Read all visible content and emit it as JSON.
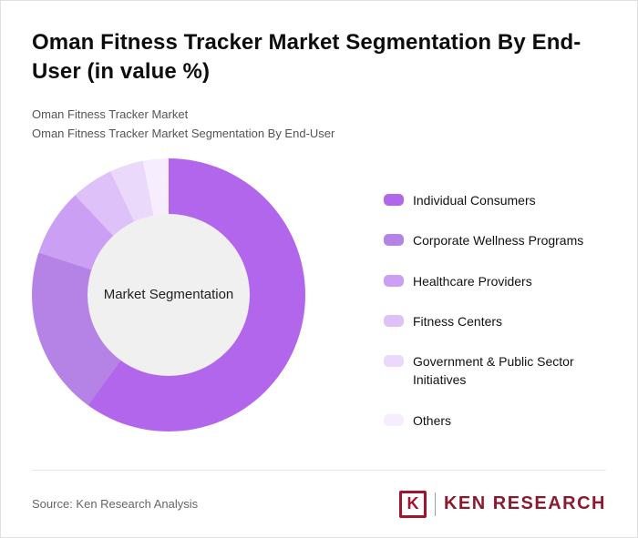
{
  "title": "Oman Fitness Tracker Market Segmentation By End-User (in value %)",
  "subtitle_line1": "Oman Fitness Tracker Market",
  "subtitle_line2": "Oman Fitness Tracker Market Segmentation By End-User",
  "footer": {
    "source": "Source: Ken Research Analysis",
    "brand_letter": "K",
    "brand_name": "KEN RESEARCH",
    "brand_color": "#a3132f"
  },
  "chart_data": {
    "type": "pie",
    "subtype": "donut",
    "title": "Oman Fitness Tracker Market Segmentation By End-User (in value %)",
    "center_label": "Market Segmentation",
    "values_unit": "value %",
    "start_angle_deg": 0,
    "direction": "clockwise",
    "legend_position": "right",
    "segments": [
      {
        "label": "Individual Consumers",
        "value": 60,
        "color": "#b266ec"
      },
      {
        "label": "Corporate Wellness Programs",
        "value": 20,
        "color": "#b583e6"
      },
      {
        "label": "Healthcare Providers",
        "value": 8,
        "color": "#cb9ff3"
      },
      {
        "label": "Fitness Centers",
        "value": 5,
        "color": "#ddc1f8"
      },
      {
        "label": "Government & Public Sector Initiatives",
        "value": 4,
        "color": "#ead9fb"
      },
      {
        "label": "Others",
        "value": 3,
        "color": "#f6eefe"
      }
    ]
  }
}
